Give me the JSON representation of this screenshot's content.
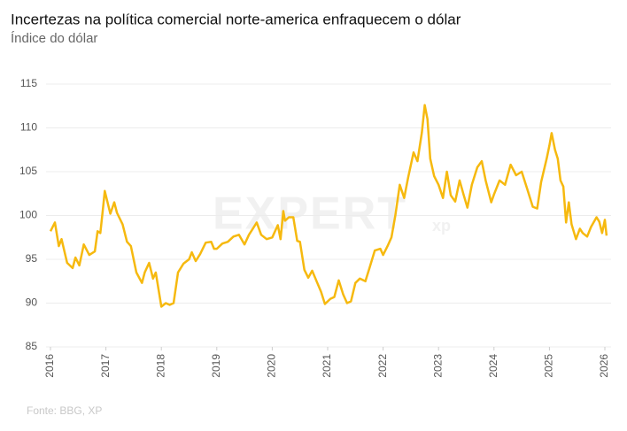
{
  "chart_data": {
    "type": "line",
    "title": "Incertezas na política comercial norte-america enfraquecem o dólar",
    "subtitle": "Índice do dólar",
    "source": "Fonte: BBG, XP",
    "watermark": "EXPERT",
    "watermark_sub": "xp",
    "xlim": [
      2016,
      2026
    ],
    "xticks": [
      2016,
      2017,
      2018,
      2019,
      2020,
      2021,
      2022,
      2023,
      2024,
      2025,
      2026
    ],
    "ylim": [
      85,
      115
    ],
    "yticks": [
      85,
      90,
      95,
      100,
      105,
      110,
      115
    ],
    "grid": true,
    "series": [
      {
        "color": "#f6b90f",
        "x": [
          2016.0,
          2016.08,
          2016.15,
          2016.2,
          2016.3,
          2016.4,
          2016.45,
          2016.52,
          2016.6,
          2016.7,
          2016.8,
          2016.85,
          2016.9,
          2016.95,
          2016.98,
          2017.08,
          2017.15,
          2017.2,
          2017.3,
          2017.38,
          2017.45,
          2017.55,
          2017.65,
          2017.7,
          2017.78,
          2017.85,
          2017.9,
          2017.95,
          2018.0,
          2018.08,
          2018.15,
          2018.22,
          2018.3,
          2018.4,
          2018.5,
          2018.55,
          2018.62,
          2018.7,
          2018.8,
          2018.9,
          2018.95,
          2019.0,
          2019.1,
          2019.2,
          2019.3,
          2019.4,
          2019.5,
          2019.58,
          2019.65,
          2019.72,
          2019.8,
          2019.9,
          2020.0,
          2020.1,
          2020.15,
          2020.2,
          2020.23,
          2020.3,
          2020.38,
          2020.45,
          2020.5,
          2020.58,
          2020.65,
          2020.72,
          2020.8,
          2020.88,
          2020.95,
          2021.05,
          2021.12,
          2021.2,
          2021.28,
          2021.35,
          2021.42,
          2021.5,
          2021.58,
          2021.68,
          2021.75,
          2021.85,
          2021.95,
          2022.0,
          2022.08,
          2022.15,
          2022.22,
          2022.3,
          2022.38,
          2022.45,
          2022.55,
          2022.62,
          2022.7,
          2022.75,
          2022.8,
          2022.85,
          2022.92,
          2023.0,
          2023.08,
          2023.15,
          2023.22,
          2023.3,
          2023.38,
          2023.45,
          2023.52,
          2023.6,
          2023.7,
          2023.78,
          2023.85,
          2023.95,
          2024.0,
          2024.1,
          2024.2,
          2024.3,
          2024.4,
          2024.5,
          2024.6,
          2024.7,
          2024.78,
          2024.85,
          2024.95,
          2025.0,
          2025.04,
          2025.1,
          2025.15,
          2025.2,
          2025.25,
          2025.3,
          2025.35,
          2025.4,
          2025.48,
          2025.55,
          2025.6,
          2025.68,
          2025.75,
          2025.85,
          2025.9,
          2025.95,
          2026.0,
          2026.03
        ],
        "values": [
          98.2,
          99.2,
          96.5,
          97.3,
          94.6,
          94.0,
          95.2,
          94.3,
          96.7,
          95.5,
          95.9,
          98.2,
          98.0,
          101.0,
          102.8,
          100.2,
          101.5,
          100.3,
          99.0,
          97.0,
          96.5,
          93.5,
          92.3,
          93.5,
          94.6,
          92.8,
          93.5,
          91.5,
          89.6,
          90.0,
          89.8,
          90.0,
          93.5,
          94.5,
          95.0,
          95.8,
          94.8,
          95.6,
          96.9,
          97.0,
          96.2,
          96.2,
          96.8,
          97.0,
          97.6,
          97.8,
          96.7,
          97.8,
          98.5,
          99.2,
          97.8,
          97.3,
          97.5,
          98.9,
          97.3,
          100.5,
          99.4,
          99.8,
          99.8,
          97.1,
          97.0,
          93.8,
          92.9,
          93.7,
          92.5,
          91.3,
          89.9,
          90.5,
          90.7,
          92.6,
          91.0,
          90.0,
          90.2,
          92.3,
          92.8,
          92.5,
          93.9,
          96.0,
          96.2,
          95.5,
          96.5,
          97.5,
          100.0,
          103.5,
          102.0,
          104.3,
          107.2,
          106.2,
          109.5,
          112.6,
          111.0,
          106.5,
          104.5,
          103.5,
          102.0,
          105.0,
          102.3,
          101.6,
          104.0,
          102.4,
          100.9,
          103.5,
          105.5,
          106.2,
          104.0,
          101.5,
          102.4,
          104.0,
          103.5,
          105.8,
          104.6,
          105.0,
          103.0,
          101.0,
          100.8,
          103.8,
          106.5,
          108.0,
          109.4,
          107.5,
          106.5,
          104.0,
          103.3,
          99.2,
          101.5,
          99.0,
          97.3,
          98.5,
          98.0,
          97.6,
          98.7,
          99.8,
          99.3,
          98.0,
          99.5,
          97.7
        ]
      }
    ]
  }
}
